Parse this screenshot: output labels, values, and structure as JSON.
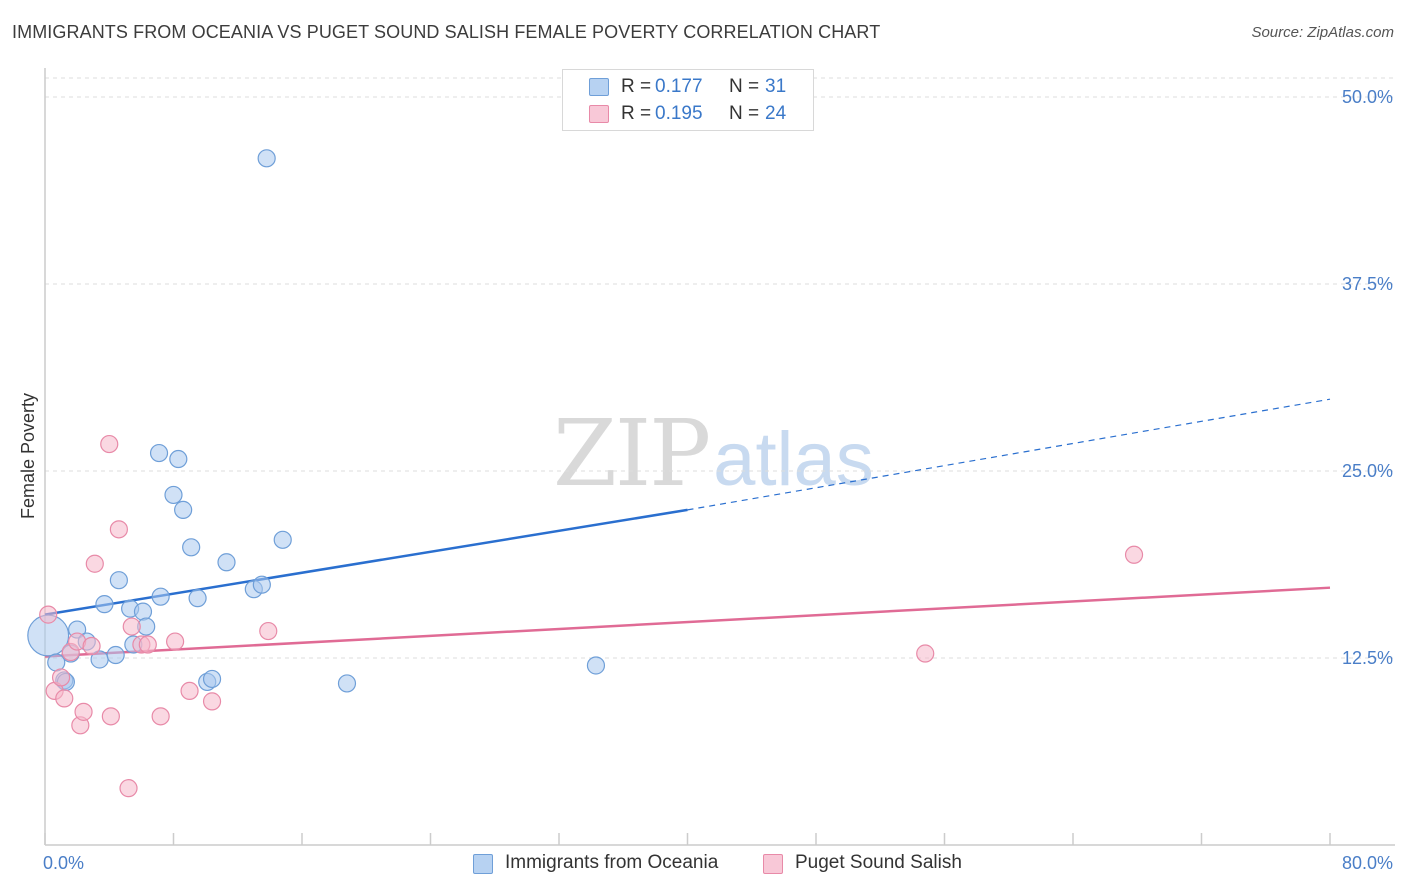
{
  "header": {
    "title": "IMMIGRANTS FROM OCEANIA VS PUGET SOUND SALISH FEMALE POVERTY CORRELATION CHART",
    "source": "Source: ZipAtlas.com"
  },
  "watermark": {
    "zip": "ZIP",
    "atlas": "atlas"
  },
  "legend": {
    "rows": [
      {
        "r_label": "R =",
        "r_value": "0.177",
        "n_label": "N =",
        "n_value": "31"
      },
      {
        "r_label": "R =",
        "r_value": "0.195",
        "n_label": "N =",
        "n_value": "24"
      }
    ]
  },
  "bottom_legend": [
    {
      "label": "Immigrants from Oceania"
    },
    {
      "label": "Puget Sound Salish"
    }
  ],
  "chart_data": {
    "type": "scatter",
    "title": "IMMIGRANTS FROM OCEANIA VS PUGET SOUND SALISH FEMALE POVERTY CORRELATION CHART",
    "xlabel": "",
    "ylabel": "Female Poverty",
    "xlim": [
      0,
      80
    ],
    "ylim": [
      0,
      50
    ],
    "x_tick_labels": [
      "0.0%",
      "80.0%"
    ],
    "y_ticks": [
      12.5,
      25.0,
      37.5,
      50.0
    ],
    "y_tick_labels": [
      "12.5%",
      "25.0%",
      "37.5%",
      "50.0%"
    ],
    "grid": true,
    "colors": {
      "series1_fill": "#a9c8ee",
      "series1_stroke": "#6f9fd8",
      "series1_line": "#2a6fcf",
      "series2_fill": "#f5b8cb",
      "series2_stroke": "#e88aa8",
      "series2_line": "#e06b95",
      "grid": "#dddddd",
      "axis": "#cccccc"
    },
    "series": [
      {
        "name": "Immigrants from Oceania",
        "R": 0.177,
        "N": 31,
        "trend": {
          "x0": 0,
          "y0": 15.4,
          "x1": 40,
          "y1": 22.4,
          "x_dash_end": 80,
          "y_dash_end": 29.8
        },
        "points": [
          [
            0.2,
            14.0,
            2.4
          ],
          [
            0.7,
            12.2,
            1
          ],
          [
            1.2,
            11.0,
            1
          ],
          [
            1.6,
            12.8,
            1
          ],
          [
            2.0,
            14.4,
            1
          ],
          [
            2.6,
            13.6,
            1
          ],
          [
            3.4,
            12.4,
            1
          ],
          [
            3.7,
            16.1,
            1
          ],
          [
            4.4,
            12.7,
            1
          ],
          [
            4.6,
            17.7,
            1
          ],
          [
            5.3,
            15.8,
            1
          ],
          [
            5.5,
            13.4,
            1
          ],
          [
            6.1,
            15.6,
            1
          ],
          [
            6.3,
            14.6,
            1
          ],
          [
            7.1,
            26.2,
            1
          ],
          [
            7.2,
            16.6,
            1
          ],
          [
            8.0,
            23.4,
            1
          ],
          [
            8.3,
            25.8,
            1
          ],
          [
            8.6,
            22.4,
            1
          ],
          [
            9.1,
            19.9,
            1
          ],
          [
            9.5,
            16.5,
            1
          ],
          [
            10.1,
            10.9,
            1
          ],
          [
            10.4,
            11.1,
            1
          ],
          [
            11.3,
            18.9,
            1
          ],
          [
            13.0,
            17.1,
            1
          ],
          [
            13.5,
            17.4,
            1
          ],
          [
            13.8,
            45.9,
            1
          ],
          [
            14.8,
            20.4,
            1
          ],
          [
            18.8,
            10.8,
            1
          ],
          [
            34.3,
            12.0,
            1
          ],
          [
            1.3,
            10.9,
            1
          ]
        ]
      },
      {
        "name": "Puget Sound Salish",
        "R": 0.195,
        "N": 24,
        "trend": {
          "x0": 0,
          "y0": 12.6,
          "x1": 80,
          "y1": 17.2
        },
        "points": [
          [
            0.2,
            15.4,
            1
          ],
          [
            0.6,
            10.3,
            1
          ],
          [
            1.0,
            11.2,
            1
          ],
          [
            1.2,
            9.8,
            1
          ],
          [
            1.6,
            12.9,
            1
          ],
          [
            2.0,
            13.6,
            1
          ],
          [
            2.2,
            8.0,
            1
          ],
          [
            2.4,
            8.9,
            1
          ],
          [
            2.9,
            13.3,
            1
          ],
          [
            3.1,
            18.8,
            1
          ],
          [
            4.0,
            26.8,
            1
          ],
          [
            4.1,
            8.6,
            1
          ],
          [
            4.6,
            21.1,
            1
          ],
          [
            5.2,
            3.8,
            1
          ],
          [
            5.4,
            14.6,
            1
          ],
          [
            6.0,
            13.4,
            1
          ],
          [
            6.4,
            13.4,
            1
          ],
          [
            7.2,
            8.6,
            1
          ],
          [
            8.1,
            13.6,
            1
          ],
          [
            9.0,
            10.3,
            1
          ],
          [
            10.4,
            9.6,
            1
          ],
          [
            13.9,
            14.3,
            1
          ],
          [
            54.8,
            12.8,
            1
          ],
          [
            67.8,
            19.4,
            1
          ]
        ]
      }
    ]
  }
}
